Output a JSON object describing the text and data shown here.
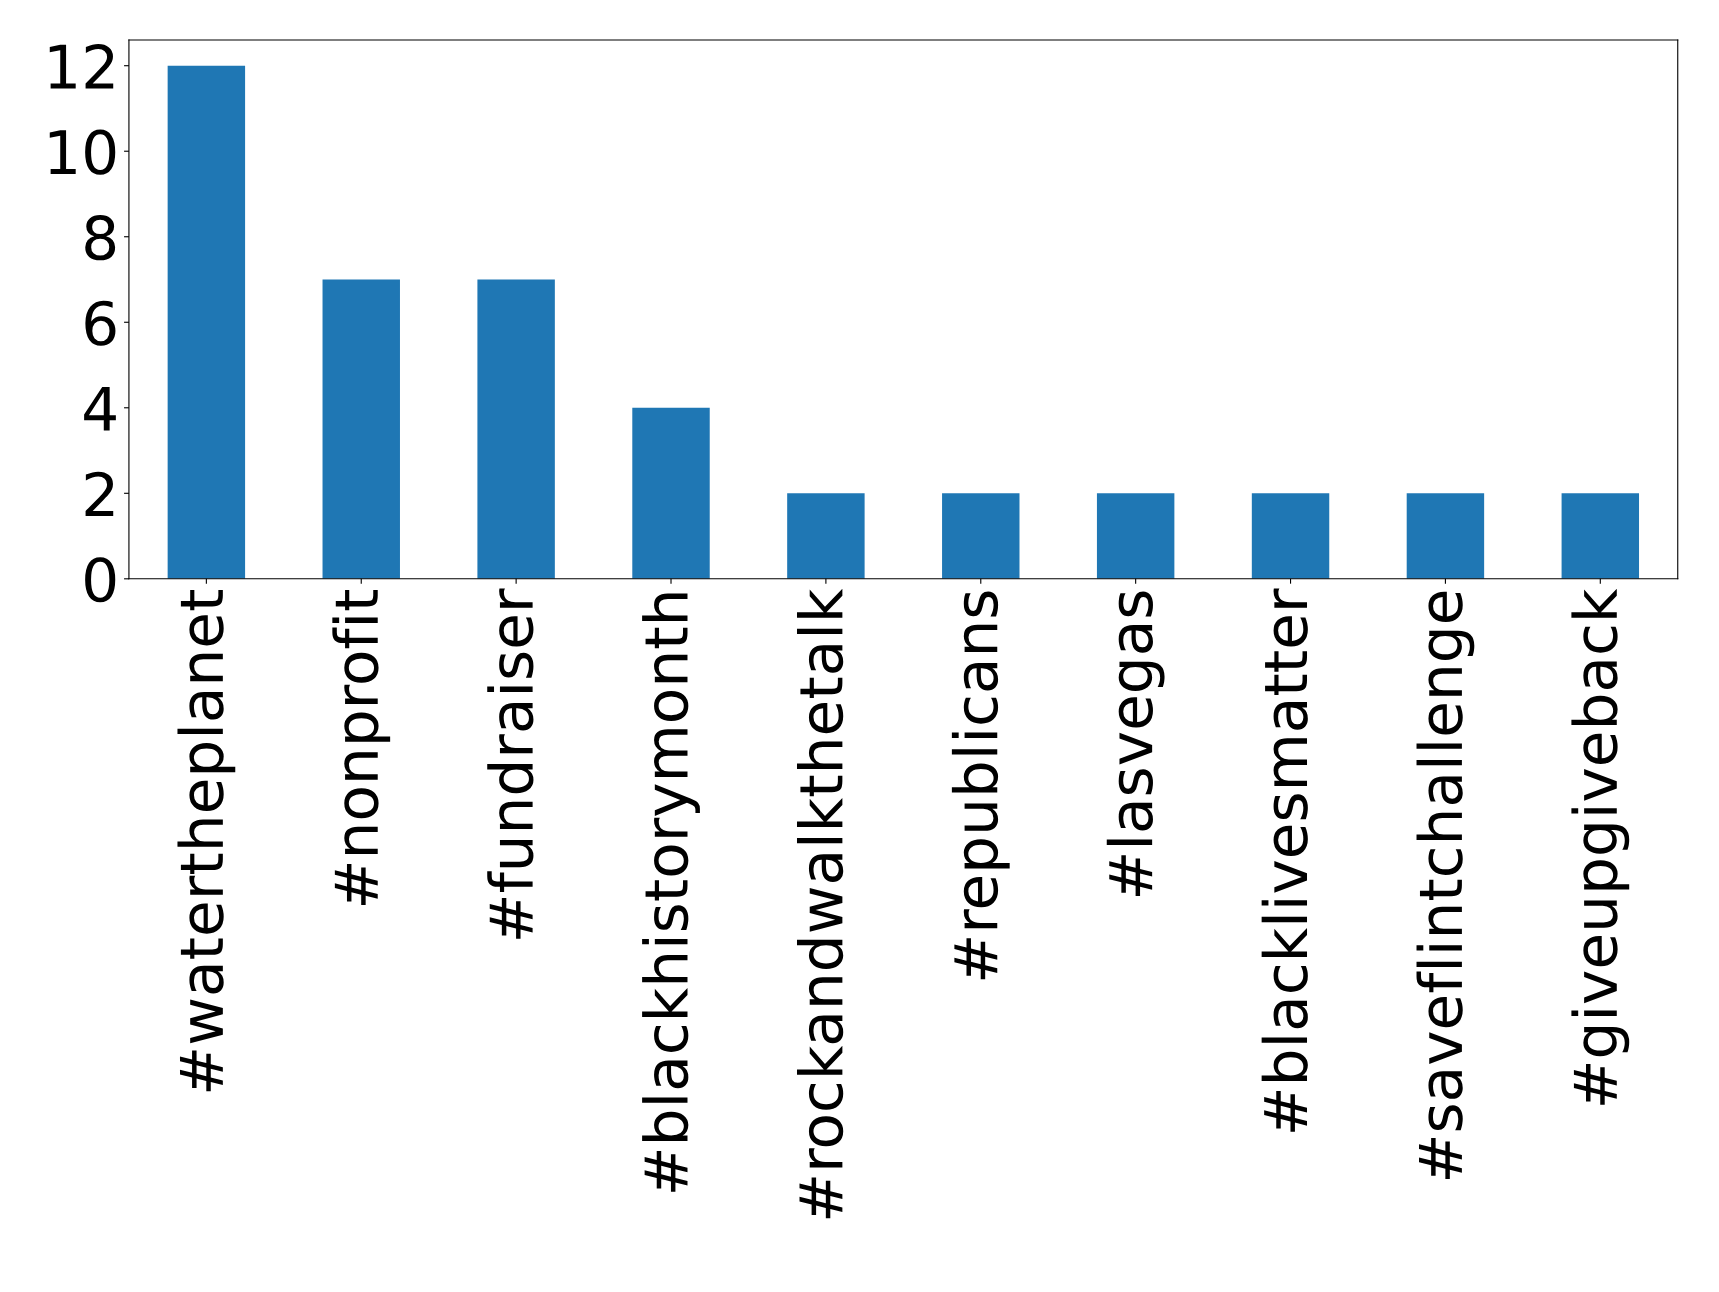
{
  "chart_data": {
    "type": "bar",
    "categories": [
      "#watertheplanet",
      "#nonprofit",
      "#fundraiser",
      "#blackhistorymonth",
      "#rockandwalkthetalk",
      "#republicans",
      "#lasvegas",
      "#blacklivesmatter",
      "#saveflintchallenge",
      "#giveupgiveback"
    ],
    "values": [
      12,
      7,
      7,
      4,
      2,
      2,
      2,
      2,
      2,
      2
    ],
    "color": "#1f77b4",
    "ylim": [
      0,
      12.6
    ],
    "yticks": [
      0,
      2,
      4,
      6,
      8,
      10,
      12
    ],
    "grid": false,
    "legend": false
  }
}
